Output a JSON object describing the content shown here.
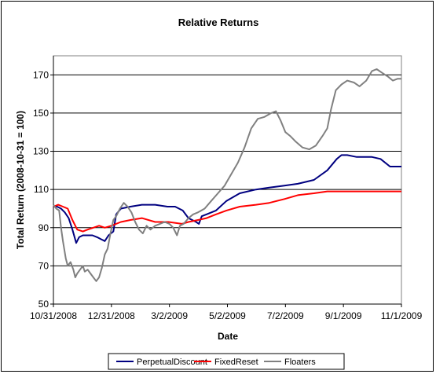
{
  "chart_data": {
    "type": "line",
    "title": "Relative Returns",
    "xlabel": "Date",
    "ylabel": "Total Return (2008-10-31 = 100)",
    "ylim": [
      50,
      180
    ],
    "yticks": [
      50,
      70,
      90,
      110,
      130,
      150,
      170
    ],
    "xlim": [
      "2008-10-31",
      "2009-11-01"
    ],
    "xtick_labels": [
      "10/31/2008",
      "12/31/2008",
      "3/2/2009",
      "5/2/2009",
      "7/2/2009",
      "9/1/2009",
      "11/1/2009"
    ],
    "xtick_dates": [
      "2008-10-31",
      "2008-12-31",
      "2009-03-02",
      "2009-05-02",
      "2009-07-02",
      "2009-09-01",
      "2009-11-01"
    ],
    "grid": "horizontal",
    "legend_position": "bottom",
    "series": [
      {
        "name": "PerpetualDiscount",
        "color": "#000080",
        "points": [
          [
            "2008-10-31",
            101
          ],
          [
            "2008-11-04",
            101
          ],
          [
            "2008-11-08",
            100
          ],
          [
            "2008-11-12",
            98
          ],
          [
            "2008-11-16",
            95
          ],
          [
            "2008-11-20",
            89
          ],
          [
            "2008-11-24",
            82
          ],
          [
            "2008-11-27",
            85
          ],
          [
            "2008-12-01",
            86
          ],
          [
            "2008-12-06",
            86
          ],
          [
            "2008-12-11",
            86
          ],
          [
            "2008-12-16",
            85
          ],
          [
            "2008-12-20",
            84
          ],
          [
            "2008-12-24",
            83
          ],
          [
            "2008-12-28",
            86
          ],
          [
            "2009-01-02",
            88
          ],
          [
            "2009-01-05",
            97
          ],
          [
            "2009-01-10",
            100
          ],
          [
            "2009-01-20",
            101
          ],
          [
            "2009-02-01",
            102
          ],
          [
            "2009-02-15",
            102
          ],
          [
            "2009-02-28",
            101
          ],
          [
            "2009-03-08",
            101
          ],
          [
            "2009-03-16",
            99
          ],
          [
            "2009-03-22",
            95
          ],
          [
            "2009-03-26",
            94
          ],
          [
            "2009-03-30",
            93
          ],
          [
            "2009-04-02",
            92
          ],
          [
            "2009-04-05",
            96
          ],
          [
            "2009-04-10",
            97
          ],
          [
            "2009-04-20",
            99
          ],
          [
            "2009-05-01",
            104
          ],
          [
            "2009-05-15",
            108
          ],
          [
            "2009-06-01",
            110
          ],
          [
            "2009-06-15",
            111
          ],
          [
            "2009-07-01",
            112
          ],
          [
            "2009-07-15",
            113
          ],
          [
            "2009-08-01",
            115
          ],
          [
            "2009-08-15",
            120
          ],
          [
            "2009-08-25",
            126
          ],
          [
            "2009-08-30",
            128
          ],
          [
            "2009-09-05",
            128
          ],
          [
            "2009-09-15",
            127
          ],
          [
            "2009-10-01",
            127
          ],
          [
            "2009-10-10",
            126
          ],
          [
            "2009-10-20",
            122
          ],
          [
            "2009-11-01",
            122
          ]
        ]
      },
      {
        "name": "FixedReset",
        "color": "#ff0000",
        "points": [
          [
            "2008-10-31",
            101
          ],
          [
            "2008-11-05",
            102
          ],
          [
            "2008-11-10",
            101
          ],
          [
            "2008-11-15",
            100
          ],
          [
            "2008-11-20",
            94
          ],
          [
            "2008-11-25",
            89
          ],
          [
            "2008-12-01",
            88
          ],
          [
            "2008-12-06",
            89
          ],
          [
            "2008-12-12",
            90
          ],
          [
            "2008-12-18",
            91
          ],
          [
            "2008-12-24",
            90
          ],
          [
            "2008-12-31",
            91
          ],
          [
            "2009-01-10",
            93
          ],
          [
            "2009-01-20",
            94
          ],
          [
            "2009-02-01",
            95
          ],
          [
            "2009-02-15",
            93
          ],
          [
            "2009-03-01",
            93
          ],
          [
            "2009-03-15",
            92
          ],
          [
            "2009-03-22",
            93
          ],
          [
            "2009-04-01",
            94
          ],
          [
            "2009-04-10",
            95
          ],
          [
            "2009-04-20",
            97
          ],
          [
            "2009-05-01",
            99
          ],
          [
            "2009-05-15",
            101
          ],
          [
            "2009-06-01",
            102
          ],
          [
            "2009-06-15",
            103
          ],
          [
            "2009-07-01",
            105
          ],
          [
            "2009-07-15",
            107
          ],
          [
            "2009-08-01",
            108
          ],
          [
            "2009-08-15",
            109
          ],
          [
            "2009-09-01",
            109
          ],
          [
            "2009-10-01",
            109
          ],
          [
            "2009-10-20",
            109
          ],
          [
            "2009-11-01",
            109
          ]
        ]
      },
      {
        "name": "Floaters",
        "color": "#808080",
        "points": [
          [
            "2008-10-31",
            102
          ],
          [
            "2008-11-03",
            100
          ],
          [
            "2008-11-06",
            99
          ],
          [
            "2008-11-08",
            90
          ],
          [
            "2008-11-10",
            83
          ],
          [
            "2008-11-13",
            74
          ],
          [
            "2008-11-15",
            70
          ],
          [
            "2008-11-18",
            72
          ],
          [
            "2008-11-21",
            68
          ],
          [
            "2008-11-23",
            64
          ],
          [
            "2008-11-25",
            66
          ],
          [
            "2008-11-28",
            68
          ],
          [
            "2008-12-01",
            70
          ],
          [
            "2008-12-03",
            67
          ],
          [
            "2008-12-06",
            68
          ],
          [
            "2008-12-09",
            66
          ],
          [
            "2008-12-12",
            64
          ],
          [
            "2008-12-15",
            62
          ],
          [
            "2008-12-18",
            64
          ],
          [
            "2008-12-21",
            69
          ],
          [
            "2008-12-24",
            76
          ],
          [
            "2008-12-27",
            79
          ],
          [
            "2008-12-30",
            87
          ],
          [
            "2009-01-02",
            94
          ],
          [
            "2009-01-05",
            96
          ],
          [
            "2009-01-09",
            100
          ],
          [
            "2009-01-13",
            103
          ],
          [
            "2009-01-17",
            101
          ],
          [
            "2009-01-21",
            98
          ],
          [
            "2009-01-25",
            93
          ],
          [
            "2009-01-29",
            89
          ],
          [
            "2009-02-02",
            87
          ],
          [
            "2009-02-06",
            91
          ],
          [
            "2009-02-10",
            89
          ],
          [
            "2009-02-15",
            91
          ],
          [
            "2009-02-20",
            92
          ],
          [
            "2009-02-25",
            93
          ],
          [
            "2009-03-02",
            92
          ],
          [
            "2009-03-06",
            90
          ],
          [
            "2009-03-10",
            86
          ],
          [
            "2009-03-13",
            91
          ],
          [
            "2009-03-17",
            92
          ],
          [
            "2009-03-22",
            95
          ],
          [
            "2009-03-27",
            97
          ],
          [
            "2009-04-01",
            98
          ],
          [
            "2009-04-08",
            100
          ],
          [
            "2009-04-15",
            104
          ],
          [
            "2009-04-22",
            108
          ],
          [
            "2009-04-29",
            112
          ],
          [
            "2009-05-06",
            118
          ],
          [
            "2009-05-13",
            124
          ],
          [
            "2009-05-20",
            132
          ],
          [
            "2009-05-27",
            142
          ],
          [
            "2009-06-03",
            147
          ],
          [
            "2009-06-10",
            148
          ],
          [
            "2009-06-17",
            150
          ],
          [
            "2009-06-22",
            151
          ],
          [
            "2009-06-27",
            146
          ],
          [
            "2009-07-02",
            140
          ],
          [
            "2009-07-07",
            138
          ],
          [
            "2009-07-13",
            135
          ],
          [
            "2009-07-20",
            132
          ],
          [
            "2009-07-27",
            131
          ],
          [
            "2009-08-03",
            133
          ],
          [
            "2009-08-10",
            138
          ],
          [
            "2009-08-15",
            142
          ],
          [
            "2009-08-19",
            152
          ],
          [
            "2009-08-24",
            162
          ],
          [
            "2009-08-30",
            165
          ],
          [
            "2009-09-05",
            167
          ],
          [
            "2009-09-12",
            166
          ],
          [
            "2009-09-18",
            164
          ],
          [
            "2009-09-25",
            167
          ],
          [
            "2009-10-01",
            172
          ],
          [
            "2009-10-06",
            173
          ],
          [
            "2009-10-12",
            171
          ],
          [
            "2009-10-18",
            169
          ],
          [
            "2009-10-23",
            167
          ],
          [
            "2009-10-28",
            168
          ],
          [
            "2009-11-01",
            168
          ]
        ]
      }
    ]
  }
}
